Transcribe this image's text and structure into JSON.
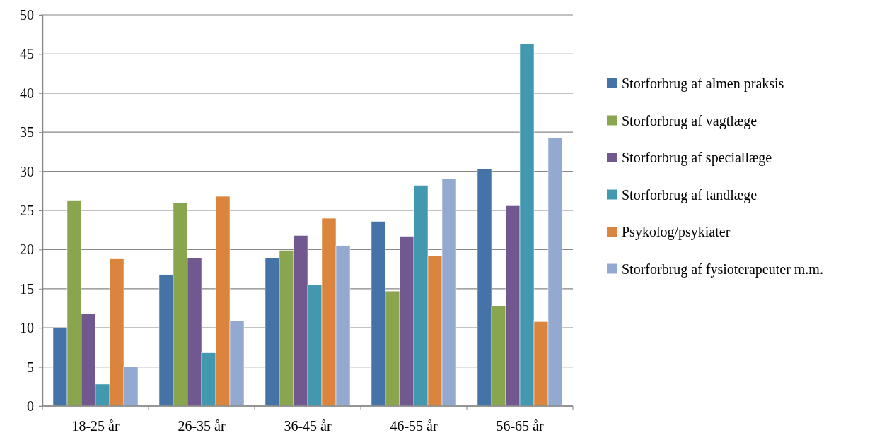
{
  "chart_data": {
    "type": "bar",
    "categories": [
      "18-25 år",
      "26-35 år",
      "36-45 år",
      "46-55 år",
      "56-65 år"
    ],
    "series": [
      {
        "name": "Storforbrug af almen praksis",
        "color": "#4572a7",
        "values": [
          10.0,
          16.8,
          18.9,
          23.6,
          30.3
        ]
      },
      {
        "name": "Storforbrug af vagtlæge",
        "color": "#89a54e",
        "values": [
          26.3,
          26.0,
          19.9,
          14.7,
          12.8
        ]
      },
      {
        "name": "Storforbrug af speciallæge",
        "color": "#71588f",
        "values": [
          11.8,
          18.9,
          21.8,
          21.7,
          25.6
        ]
      },
      {
        "name": "Storforbrug af tandlæge",
        "color": "#4198af",
        "values": [
          2.8,
          6.8,
          15.5,
          28.2,
          46.3
        ]
      },
      {
        "name": "Psykolog/psykiater",
        "color": "#db843d",
        "values": [
          18.8,
          26.8,
          24.0,
          19.2,
          10.8
        ]
      },
      {
        "name": "Storforbrug af fysioterapeuter m.m.",
        "color": "#93a9cf",
        "values": [
          5.0,
          10.9,
          20.5,
          29.0,
          34.3
        ]
      }
    ],
    "ylim": [
      0,
      50
    ],
    "yticks": [
      0,
      5,
      10,
      15,
      20,
      25,
      30,
      35,
      40,
      45,
      50
    ],
    "grid": "y",
    "legend": "right"
  }
}
